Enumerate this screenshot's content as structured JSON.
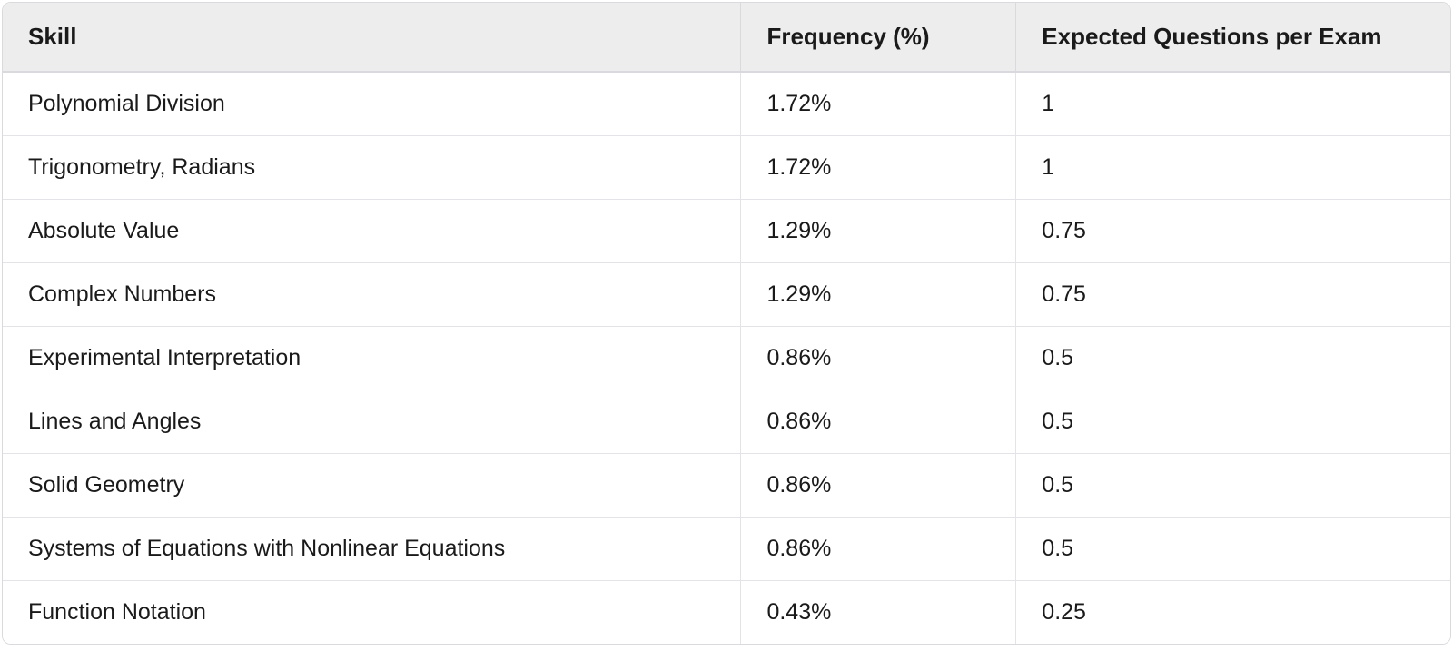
{
  "table": {
    "type": "table",
    "background_color": "#ffffff",
    "header_background": "#ededee",
    "border_color": "#d9d9de",
    "row_border_color": "#e4e4e8",
    "text_color": "#1a1a1a",
    "header_fontsize": 26,
    "cell_fontsize": 25,
    "border_radius": 10,
    "columns": [
      {
        "key": "skill",
        "label": "Skill",
        "width_pct": 51,
        "align": "left"
      },
      {
        "key": "frequency",
        "label": "Frequency (%)",
        "width_pct": 19,
        "align": "left"
      },
      {
        "key": "expected",
        "label": "Expected Questions per Exam",
        "width_pct": 30,
        "align": "left"
      }
    ],
    "rows": [
      {
        "skill": "Polynomial Division",
        "frequency": "1.72%",
        "expected": "1"
      },
      {
        "skill": "Trigonometry, Radians",
        "frequency": "1.72%",
        "expected": "1"
      },
      {
        "skill": "Absolute Value",
        "frequency": "1.29%",
        "expected": "0.75"
      },
      {
        "skill": "Complex Numbers",
        "frequency": "1.29%",
        "expected": "0.75"
      },
      {
        "skill": "Experimental Interpretation",
        "frequency": "0.86%",
        "expected": "0.5"
      },
      {
        "skill": "Lines and Angles",
        "frequency": "0.86%",
        "expected": "0.5"
      },
      {
        "skill": "Solid Geometry",
        "frequency": "0.86%",
        "expected": "0.5"
      },
      {
        "skill": "Systems of Equations with Nonlinear Equations",
        "frequency": "0.86%",
        "expected": "0.5"
      },
      {
        "skill": "Function Notation",
        "frequency": "0.43%",
        "expected": "0.25"
      }
    ]
  }
}
